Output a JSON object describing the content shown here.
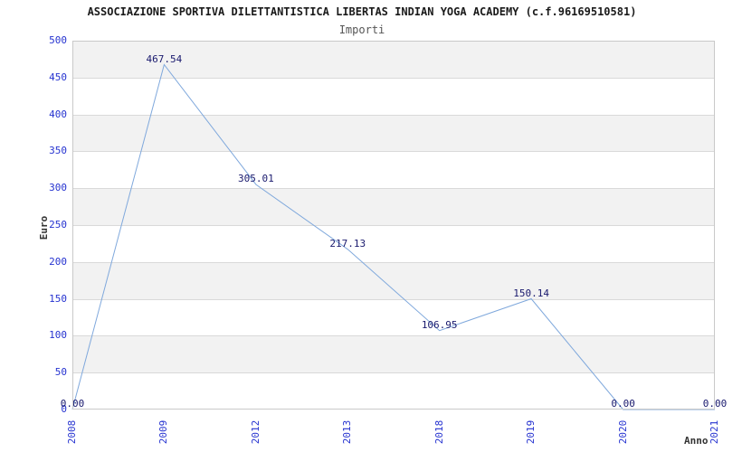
{
  "chart_data": {
    "type": "line",
    "title": "ASSOCIAZIONE SPORTIVA DILETTANTISTICA LIBERTAS INDIAN YOGA ACADEMY (c.f.96169510581)",
    "subtitle": "Importi",
    "xlabel": "Anno",
    "ylabel": "Euro",
    "categories": [
      "2008",
      "2009",
      "2012",
      "2013",
      "2018",
      "2019",
      "2020",
      "2021"
    ],
    "values": [
      0,
      467.54,
      305.01,
      217.13,
      106.95,
      150.14,
      0,
      0
    ],
    "point_labels": [
      "0.00",
      "467.54",
      "305.01",
      "217.13",
      "106.95",
      "150.14",
      "0.00",
      "0.00"
    ],
    "ylim": [
      0,
      500
    ],
    "ytick_step": 50,
    "ytick_labels": [
      "0",
      "50",
      "100",
      "150",
      "200",
      "250",
      "300",
      "350",
      "400",
      "450",
      "500"
    ],
    "grid": true,
    "legend": "none",
    "band_fill_alternating": true,
    "colors": {
      "line": "#7fa8dc",
      "axis_labels": "#2633d0",
      "point_labels": "#1a1a6e",
      "band": "#f2f2f2",
      "grid_line": "#d9d9d9",
      "plot_border": "#c9c9c9",
      "title": "#1a1a1a",
      "subtitle": "#555555"
    }
  }
}
